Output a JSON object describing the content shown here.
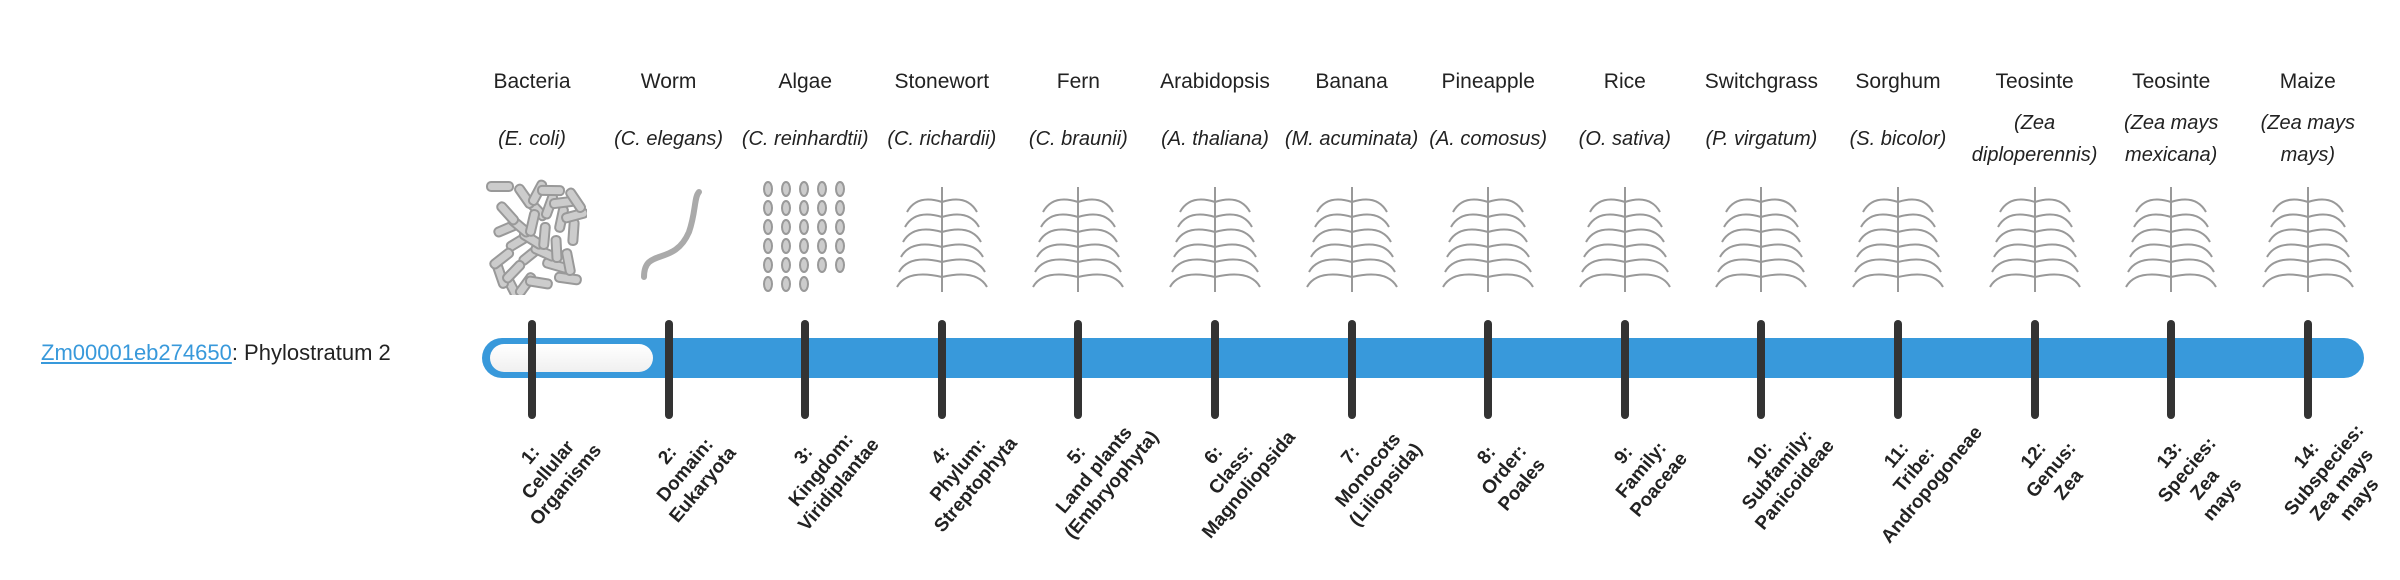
{
  "gene": {
    "id": "Zm00001eb274650",
    "suffix": ": Phylostratum 2",
    "phylostratum": 2
  },
  "colors": {
    "bar": "#3899db",
    "tick": "#333333",
    "link": "#3899db"
  },
  "strata": [
    {
      "name": "Bacteria",
      "latin": "(E. coli)",
      "label": "1:\nCellular\nOrganisms",
      "icon": "bacteria-icon"
    },
    {
      "name": "Worm",
      "latin": "(C. elegans)",
      "label": "2:\nDomain:\nEukaryota",
      "icon": "worm-icon"
    },
    {
      "name": "Algae",
      "latin": "(C. reinhardtii)",
      "label": "3:\nKingdom:\nViridiplantae",
      "icon": "algae-icon"
    },
    {
      "name": "Stonewort",
      "latin": "(C. richardii)",
      "label": "4:\nPhylum:\nStreptophyta",
      "icon": "stonewort-icon"
    },
    {
      "name": "Fern",
      "latin": "(C. braunii)",
      "label": "5:\nLand plants\n(Embryophyta)",
      "icon": "fern-icon"
    },
    {
      "name": "Arabidopsis",
      "latin": "(A. thaliana)",
      "label": "6:\nClass:\nMagnoliopsida",
      "icon": "arabidopsis-icon"
    },
    {
      "name": "Banana",
      "latin": "(M. acuminata)",
      "label": "7:\nMonocots\n(Liliopsida)",
      "icon": "banana-icon"
    },
    {
      "name": "Pineapple",
      "latin": "(A. comosus)",
      "label": "8:\nOrder:\nPoales",
      "icon": "pineapple-icon"
    },
    {
      "name": "Rice",
      "latin": "(O. sativa)",
      "label": "9:\nFamily:\nPoaceae",
      "icon": "rice-icon"
    },
    {
      "name": "Switchgrass",
      "latin": "(P. virgatum)",
      "label": "10:\nSubfamily:\nPanicoideae",
      "icon": "switchgrass-icon"
    },
    {
      "name": "Sorghum",
      "latin": "(S. bicolor)",
      "label": "11:\nTribe:\nAndropogoneae",
      "icon": "sorghum-icon"
    },
    {
      "name": "Teosinte",
      "latin": "(Zea diploperennis)",
      "label": "12:\nGenus:\nZea",
      "icon": "teosinte-icon"
    },
    {
      "name": "Teosinte",
      "latin": "(Zea mays mexicana)",
      "label": "13:\nSpecies:\nZea\nmays",
      "icon": "teosinte-icon"
    },
    {
      "name": "Maize",
      "latin": "(Zea mays mays)",
      "label": "14:\nSubspecies:\nZea mays\nmays",
      "icon": "maize-icon"
    }
  ]
}
